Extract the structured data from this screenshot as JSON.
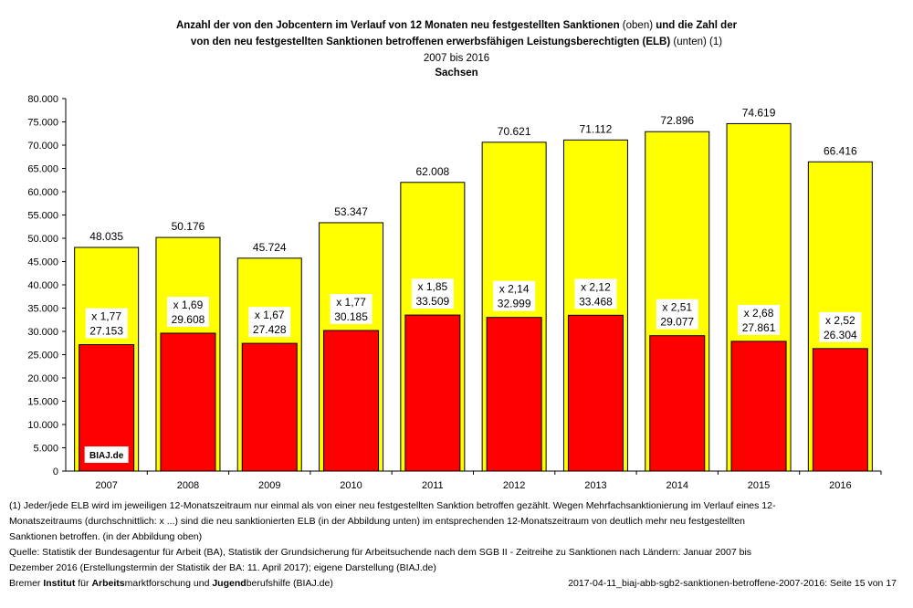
{
  "title": {
    "line1_bold": "Anzahl der von den Jobcentern im Verlauf von 12 Monaten neu festgestellten Sanktionen",
    "line1_normal": "(oben)",
    "line1_bold2": "und die Zahl der",
    "line2_bold": "von den neu festgestellten Sanktionen betroffenen erwerbsfähigen Leistungsberechtigten (ELB)",
    "line2_normal": "(unten) (1)",
    "line3": "2007 bis 2016",
    "line4": "Sachsen"
  },
  "chart_data": {
    "type": "bar",
    "categories": [
      "2007",
      "2008",
      "2009",
      "2010",
      "2011",
      "2012",
      "2013",
      "2014",
      "2015",
      "2016"
    ],
    "series": [
      {
        "values": [
          48035,
          50176,
          45724,
          53347,
          62008,
          70621,
          71112,
          72896,
          74619,
          66416
        ],
        "labels": [
          "48.035",
          "50.176",
          "45.724",
          "53.347",
          "62.008",
          "70.621",
          "71.112",
          "72.896",
          "74.619",
          "66.416"
        ],
        "color": "#ffff00"
      },
      {
        "values": [
          27153,
          29608,
          27428,
          30185,
          33509,
          32999,
          33468,
          29077,
          27861,
          26304
        ],
        "labels": [
          "27.153",
          "29.608",
          "27.428",
          "30.185",
          "33.509",
          "32.999",
          "33.468",
          "29.077",
          "27.861",
          "26.304"
        ],
        "ratios": [
          "x 1,77",
          "x 1,69",
          "x 1,67",
          "x 1,77",
          "x 1,85",
          "x 2,14",
          "x 2,12",
          "x 2,51",
          "x 2,68",
          "x 2,52"
        ],
        "color": "#ff0000"
      }
    ],
    "ylim": [
      0,
      80000
    ],
    "yticks": [
      "0",
      "5.000",
      "10.000",
      "15.000",
      "20.000",
      "25.000",
      "30.000",
      "35.000",
      "40.000",
      "45.000",
      "50.000",
      "55.000",
      "60.000",
      "65.000",
      "70.000",
      "75.000",
      "80.000"
    ],
    "grid": false,
    "watermark": "BIAJ.de"
  },
  "notes": [
    "(1) Jeder/jede ELB wird im jeweiligen 12-Monatszeitraum nur einmal als von einer neu festgestellten Sanktion betroffen gezählt. Wegen Mehrfachsanktionierung im Verlauf eines 12-",
    "Monatszeitraums (durchschnittlich: x ...) sind die neu sanktionierten ELB (in der Abbildung unten) im entsprechenden 12-Monatszeitraum von deutlich mehr neu festgestellten",
    "Sanktionen betroffen. (in der Abbildung oben)",
    "Quelle: Statistik der Bundesagentur für Arbeit (BA), Statistik der Grundsicherung für Arbeitsuchende nach dem SGB II - Zeitreihe zu Sanktionen nach Ländern: Januar 2007 bis",
    "Dezember 2016 (Erstellungstermin der Statistik der BA: 11. April 2017); eigene Darstellung (BIAJ.de)"
  ],
  "footer": {
    "org_parts": [
      "Bremer ",
      "Institut",
      " für ",
      "Arbeits",
      "marktforschung und ",
      "Jugend",
      "berufshilfe (BIAJ.de)"
    ],
    "file": "2017-04-11_biaj-abb-sgb2-sanktionen-betroffene-2007-2016: Seite 15 von 17"
  }
}
